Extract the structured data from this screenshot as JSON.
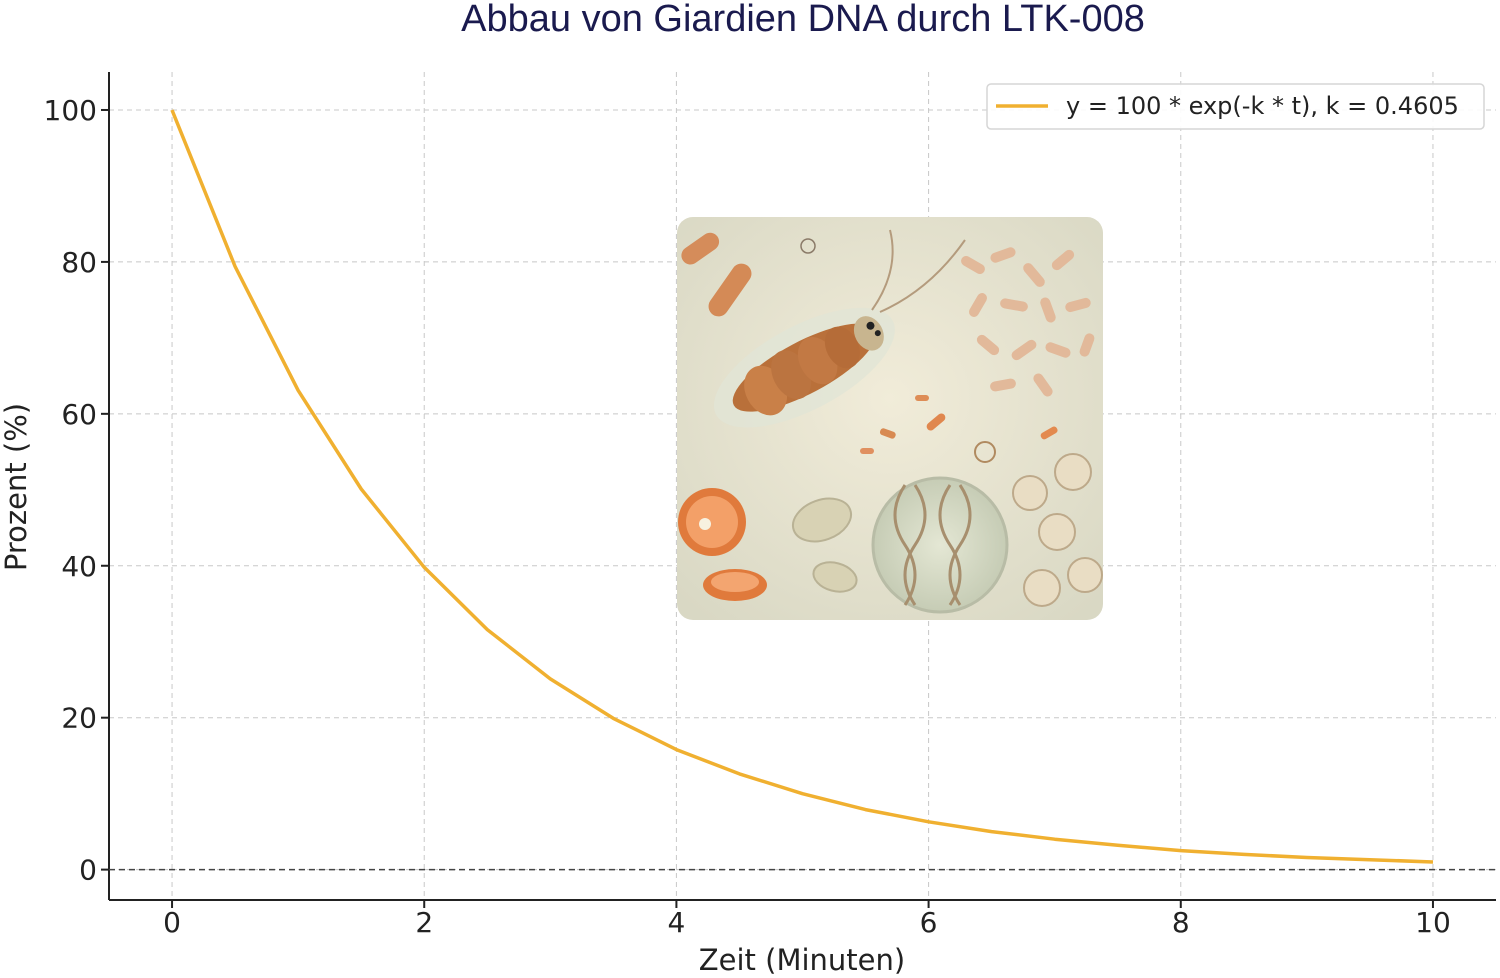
{
  "chart_data": {
    "type": "line",
    "title": "Abbau von Giardien DNA durch LTK-008",
    "xlabel": "Zeit (Minuten)",
    "ylabel": "Prozent (%)",
    "xlim": [
      -0.5,
      10.5
    ],
    "ylim": [
      -4,
      105
    ],
    "xticks": [
      0,
      2,
      4,
      6,
      8,
      10
    ],
    "yticks": [
      0,
      20,
      40,
      60,
      80,
      100
    ],
    "grid": true,
    "legend_position": "top-right",
    "reference_line": {
      "y": 0,
      "style": "dashed",
      "color": "#444444"
    },
    "series": [
      {
        "name": "y = 100 * exp(-k * t), k = 0.4605",
        "color": "#f0b030",
        "x": [
          0,
          0.5,
          1,
          1.5,
          2,
          2.5,
          3,
          3.5,
          4,
          4.5,
          5,
          5.5,
          6,
          6.5,
          7,
          7.5,
          8,
          8.5,
          9,
          9.5,
          10
        ],
        "y": [
          100,
          79.4,
          63.1,
          50.1,
          39.8,
          31.6,
          25.1,
          19.9,
          15.8,
          12.6,
          10.0,
          7.9,
          6.3,
          5.0,
          4.0,
          3.2,
          2.5,
          2.0,
          1.6,
          1.3,
          1.0
        ]
      }
    ]
  },
  "inset_image": {
    "description_icon": "microorganisms-illustration",
    "colors": {
      "background": "#e9e4cf",
      "accent": "#d9773a",
      "cell": "#efe4c8"
    }
  }
}
